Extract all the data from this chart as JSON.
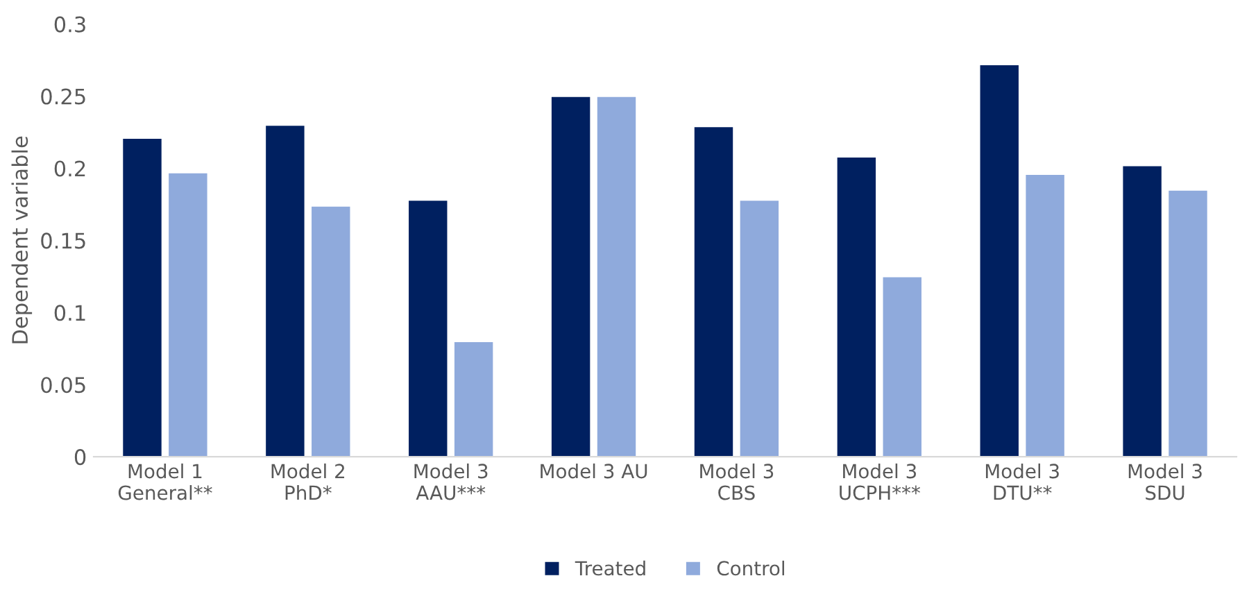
{
  "chart_data": {
    "type": "bar",
    "ylabel": "Dependent variable",
    "categories": [
      "Model 1\nGeneral**",
      "Model 2\nPhD*",
      "Model 3\nAAU***",
      "Model 3 AU",
      "Model 3\nCBS",
      "Model 3\nUCPH***",
      "Model 3\nDTU**",
      "Model 3\nSDU"
    ],
    "series": [
      {
        "name": "Treated",
        "color": "#002060",
        "values": [
          0.221,
          0.23,
          0.178,
          0.25,
          0.229,
          0.208,
          0.272,
          0.202
        ]
      },
      {
        "name": "Control",
        "color": "#8faadc",
        "values": [
          0.197,
          0.174,
          0.08,
          0.25,
          0.178,
          0.125,
          0.196,
          0.185
        ]
      }
    ],
    "ylim": [
      0,
      0.3
    ],
    "yticks": [
      {
        "value": 0,
        "label": "0"
      },
      0.05,
      0.1,
      0.15,
      0.2,
      0.25,
      0.3
    ],
    "grid": false,
    "legend": "bottom"
  }
}
